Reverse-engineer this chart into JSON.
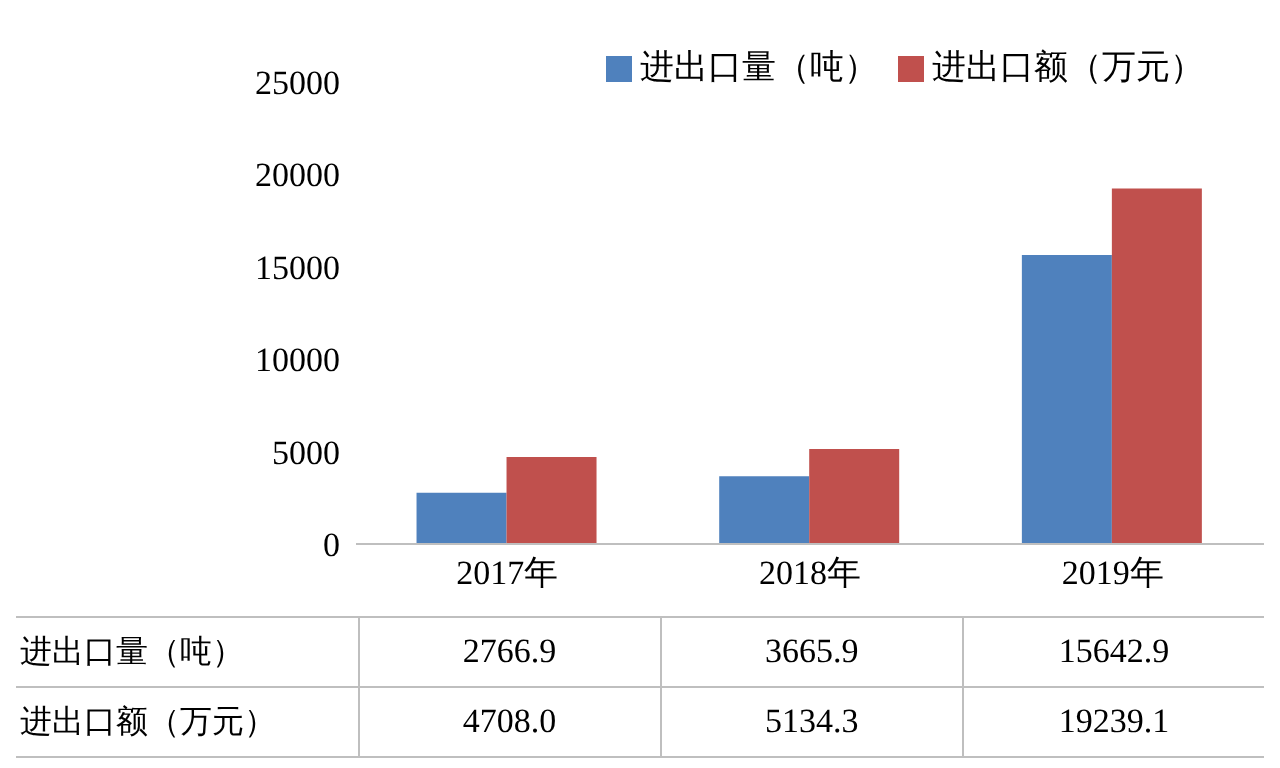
{
  "chart_data": {
    "type": "bar",
    "categories": [
      "2017年",
      "2018年",
      "2019年"
    ],
    "series": [
      {
        "name": "进出口量（吨）",
        "color": "#4f81bd",
        "values": [
          2766.9,
          3665.9,
          15642.9
        ],
        "value_labels": [
          "2766.9",
          "3665.9",
          "15642.9"
        ]
      },
      {
        "name": "进出口额（万元）",
        "color": "#c0504d",
        "values": [
          4708.0,
          5134.3,
          19239.1
        ],
        "value_labels": [
          "4708.0",
          "5134.3",
          "19239.1"
        ]
      }
    ],
    "ylim": [
      0,
      25000
    ],
    "yticks": [
      0,
      5000,
      10000,
      15000,
      20000,
      25000
    ],
    "grid": false,
    "legend": "top right"
  }
}
